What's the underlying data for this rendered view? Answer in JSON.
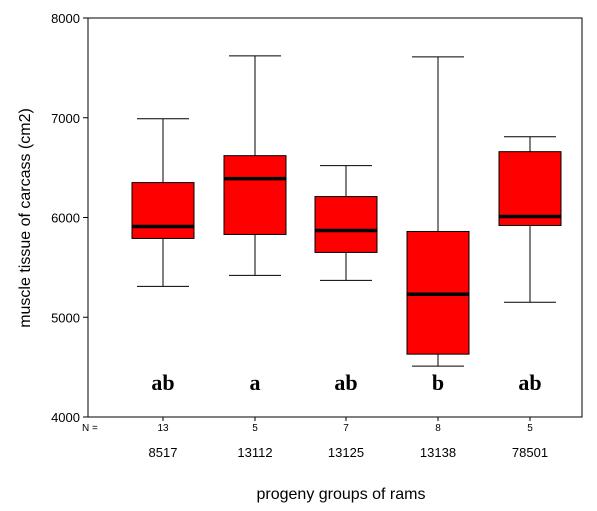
{
  "chart_data": {
    "type": "box",
    "ylabel": "muscle tissue of carcass (cm2)",
    "xlabel": "progeny groups of rams",
    "ylim": [
      4000,
      8000
    ],
    "yticks": [
      "4000",
      "5000",
      "6000",
      "7000",
      "8000"
    ],
    "n_prefix": "N =",
    "box_color": "#ff0000",
    "groups": [
      {
        "category": "8517",
        "n": "13",
        "min": 5310,
        "q1": 5790,
        "median": 5910,
        "q3": 6350,
        "max": 6990,
        "letter": "ab"
      },
      {
        "category": "13112",
        "n": "5",
        "min": 5420,
        "q1": 5830,
        "median": 6390,
        "q3": 6620,
        "max": 7620,
        "letter": "a"
      },
      {
        "category": "13125",
        "n": "7",
        "min": 5370,
        "q1": 5650,
        "median": 5870,
        "q3": 6210,
        "max": 6520,
        "letter": "ab"
      },
      {
        "category": "13138",
        "n": "8",
        "min": 4510,
        "q1": 4630,
        "median": 5230,
        "q3": 5860,
        "max": 7610,
        "letter": "b"
      },
      {
        "category": "78501",
        "n": "5",
        "min": 5150,
        "q1": 5920,
        "median": 6010,
        "q3": 6660,
        "max": 6810,
        "letter": "ab"
      }
    ]
  }
}
